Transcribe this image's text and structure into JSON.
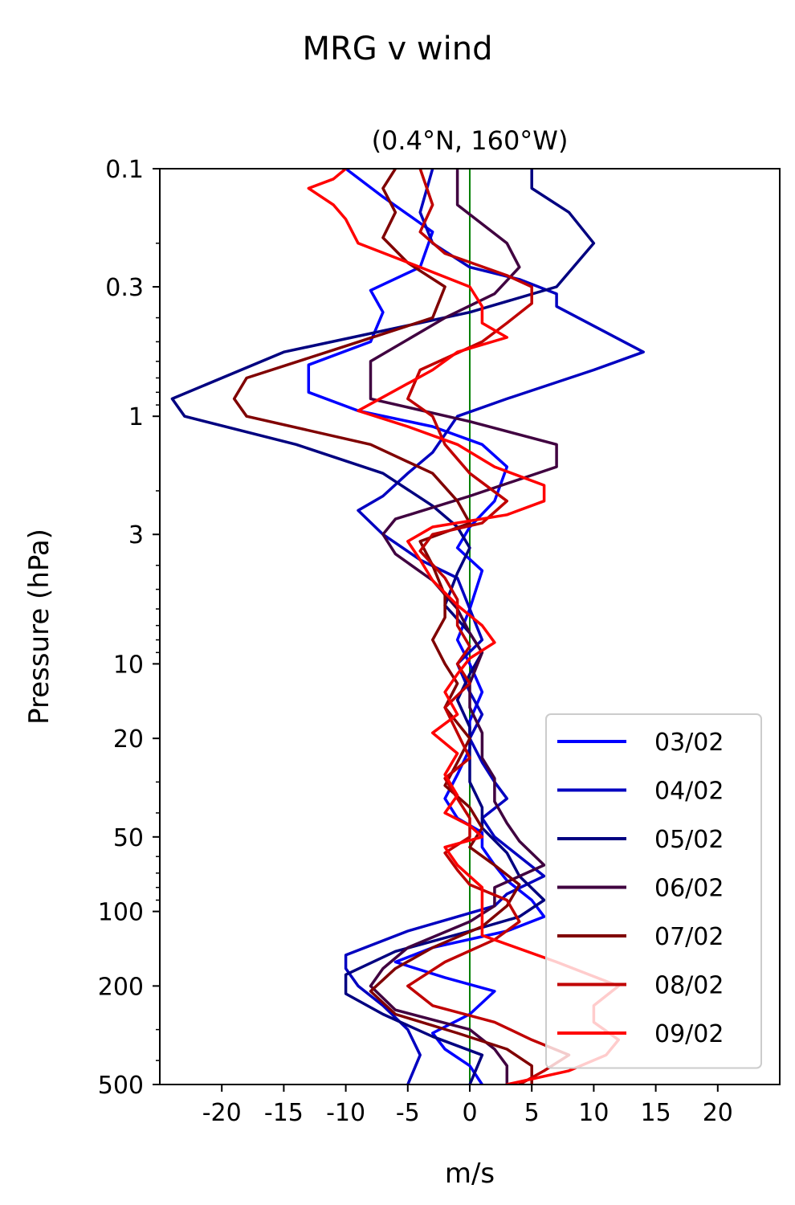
{
  "figure": {
    "title": "MRG v wind"
  },
  "chart_data": {
    "type": "line",
    "orientation": "vertical-profile",
    "title": "(0.4°N, 160°W)",
    "xlabel": "m/s",
    "ylabel": "Pressure (hPa)",
    "xlim": [
      -25,
      25
    ],
    "ylim": [
      500,
      0.1
    ],
    "yscale": "log",
    "xticks": [
      -20,
      -15,
      -10,
      -5,
      0,
      5,
      10,
      15,
      20
    ],
    "xtick_labels": [
      "-20",
      "-15",
      "-10",
      "-5",
      "0",
      "5",
      "10",
      "15",
      "20"
    ],
    "yticks": [
      0.1,
      0.3,
      1,
      3,
      10,
      20,
      50,
      100,
      200,
      500
    ],
    "ytick_labels": [
      "0.1",
      "0.3",
      "1",
      "3",
      "10",
      "20",
      "50",
      "100",
      "200",
      "500"
    ],
    "reference_line": {
      "x": 0,
      "color": "#008000"
    },
    "legend": {
      "position": "bottom-right"
    },
    "series": [
      {
        "name": "03/02",
        "color": "#0000ff",
        "points": [
          [
            -10,
            0.1
          ],
          [
            -7,
            0.13
          ],
          [
            -3,
            0.18
          ],
          [
            -4,
            0.25
          ],
          [
            -8,
            0.31
          ],
          [
            -7,
            0.38
          ],
          [
            -8,
            0.5
          ],
          [
            -13,
            0.62
          ],
          [
            -13,
            0.8
          ],
          [
            -9,
            0.95
          ],
          [
            -3,
            1.1
          ],
          [
            1,
            1.3
          ],
          [
            3,
            1.6
          ],
          [
            2,
            2.2
          ],
          [
            0,
            2.8
          ],
          [
            -1,
            3.4
          ],
          [
            1,
            4.2
          ],
          [
            0,
            6
          ],
          [
            -1,
            8
          ],
          [
            0,
            10
          ],
          [
            1,
            13
          ],
          [
            0,
            17
          ],
          [
            0,
            22
          ],
          [
            -1,
            28
          ],
          [
            -2,
            35
          ],
          [
            -1,
            42
          ],
          [
            1,
            48
          ],
          [
            1,
            55
          ],
          [
            2,
            65
          ],
          [
            3,
            75
          ],
          [
            5,
            90
          ],
          [
            6,
            105
          ],
          [
            3,
            120
          ],
          [
            -3,
            140
          ],
          [
            -6,
            160
          ],
          [
            -2,
            185
          ],
          [
            2,
            210
          ],
          [
            0,
            260
          ],
          [
            -3,
            310
          ],
          [
            -2,
            360
          ],
          [
            0,
            420
          ],
          [
            1,
            500
          ]
        ]
      },
      {
        "name": "04/02",
        "color": "#0000c0",
        "points": [
          [
            -3,
            0.1
          ],
          [
            -4,
            0.15
          ],
          [
            -3,
            0.2
          ],
          [
            0,
            0.25
          ],
          [
            4,
            0.28
          ],
          [
            7,
            0.32
          ],
          [
            7,
            0.36
          ],
          [
            14,
            0.55
          ],
          [
            10,
            0.65
          ],
          [
            3,
            0.85
          ],
          [
            -1,
            1.0
          ],
          [
            -3,
            1.4
          ],
          [
            -5,
            1.7
          ],
          [
            -7,
            2.1
          ],
          [
            -9,
            2.4
          ],
          [
            -7,
            3.0
          ],
          [
            -4,
            3.8
          ],
          [
            -1,
            4.5
          ],
          [
            0,
            6
          ],
          [
            1,
            8
          ],
          [
            -1,
            10
          ],
          [
            0,
            13
          ],
          [
            1,
            16
          ],
          [
            0,
            20
          ],
          [
            1,
            25
          ],
          [
            2,
            30
          ],
          [
            3,
            35
          ],
          [
            1,
            42
          ],
          [
            2,
            50
          ],
          [
            4,
            60
          ],
          [
            6,
            72
          ],
          [
            3,
            85
          ],
          [
            2,
            95
          ],
          [
            -5,
            120
          ],
          [
            -10,
            150
          ],
          [
            -10,
            170
          ],
          [
            -9,
            200
          ],
          [
            -7,
            240
          ],
          [
            -5,
            300
          ],
          [
            -4,
            380
          ],
          [
            -5,
            500
          ]
        ]
      },
      {
        "name": "05/02",
        "color": "#000080",
        "points": [
          [
            5,
            0.1
          ],
          [
            5,
            0.12
          ],
          [
            8,
            0.15
          ],
          [
            10,
            0.2
          ],
          [
            7,
            0.3
          ],
          [
            0,
            0.38
          ],
          [
            -15,
            0.55
          ],
          [
            -24,
            0.85
          ],
          [
            -23,
            1.0
          ],
          [
            -14,
            1.3
          ],
          [
            -7,
            1.7
          ],
          [
            -3,
            2.3
          ],
          [
            -1,
            2.8
          ],
          [
            0,
            3.4
          ],
          [
            -1,
            4.3
          ],
          [
            -2,
            5.8
          ],
          [
            0,
            7.5
          ],
          [
            1,
            9
          ],
          [
            0,
            11
          ],
          [
            -1,
            14
          ],
          [
            0,
            18
          ],
          [
            0,
            24
          ],
          [
            0,
            30
          ],
          [
            1,
            38
          ],
          [
            1,
            46
          ],
          [
            3,
            58
          ],
          [
            4,
            72
          ],
          [
            6,
            90
          ],
          [
            4,
            105
          ],
          [
            0,
            120
          ],
          [
            -6,
            145
          ],
          [
            -10,
            180
          ],
          [
            -10,
            215
          ],
          [
            -7,
            260
          ],
          [
            -3,
            320
          ],
          [
            1,
            380
          ],
          [
            0,
            500
          ]
        ]
      },
      {
        "name": "06/02",
        "color": "#400040",
        "points": [
          [
            -1,
            0.1
          ],
          [
            -1,
            0.14
          ],
          [
            3,
            0.2
          ],
          [
            4,
            0.25
          ],
          [
            2,
            0.32
          ],
          [
            -2,
            0.4
          ],
          [
            -8,
            0.6
          ],
          [
            -8,
            0.85
          ],
          [
            0,
            1.05
          ],
          [
            7,
            1.3
          ],
          [
            7,
            1.6
          ],
          [
            0,
            2.1
          ],
          [
            -6,
            2.6
          ],
          [
            -7,
            3.0
          ],
          [
            -6,
            3.6
          ],
          [
            -3,
            4.6
          ],
          [
            -1,
            6
          ],
          [
            0,
            7.5
          ],
          [
            1,
            9
          ],
          [
            0,
            12
          ],
          [
            0,
            15
          ],
          [
            1,
            19
          ],
          [
            1,
            24
          ],
          [
            2,
            29
          ],
          [
            2,
            36
          ],
          [
            3,
            44
          ],
          [
            4,
            52
          ],
          [
            6,
            65
          ],
          [
            2,
            80
          ],
          [
            2,
            95
          ],
          [
            0,
            110
          ],
          [
            -5,
            140
          ],
          [
            -7,
            170
          ],
          [
            -8,
            200
          ],
          [
            -6,
            250
          ],
          [
            0,
            300
          ],
          [
            2,
            360
          ],
          [
            3,
            420
          ],
          [
            3,
            500
          ]
        ]
      },
      {
        "name": "07/02",
        "color": "#800000",
        "points": [
          [
            -6,
            0.1
          ],
          [
            -7,
            0.12
          ],
          [
            -6,
            0.15
          ],
          [
            -7,
            0.19
          ],
          [
            -5,
            0.24
          ],
          [
            -2,
            0.3
          ],
          [
            -3,
            0.4
          ],
          [
            -10,
            0.52
          ],
          [
            -18,
            0.7
          ],
          [
            -19,
            0.85
          ],
          [
            -18,
            1.0
          ],
          [
            -8,
            1.3
          ],
          [
            -3,
            1.7
          ],
          [
            -1,
            2.2
          ],
          [
            0,
            2.7
          ],
          [
            -4,
            3.2
          ],
          [
            -3,
            4.0
          ],
          [
            -2,
            5.3
          ],
          [
            -2,
            6.5
          ],
          [
            -3,
            8
          ],
          [
            -2,
            10
          ],
          [
            -1,
            12
          ],
          [
            -2,
            15
          ],
          [
            0,
            20
          ],
          [
            -1,
            25
          ],
          [
            -2,
            31
          ],
          [
            0,
            38
          ],
          [
            1,
            46
          ],
          [
            0,
            55
          ],
          [
            2,
            65
          ],
          [
            4,
            78
          ],
          [
            3,
            95
          ],
          [
            1,
            115
          ],
          [
            -3,
            140
          ],
          [
            -6,
            170
          ],
          [
            -8,
            210
          ],
          [
            -6,
            260
          ],
          [
            -1,
            310
          ],
          [
            3,
            360
          ],
          [
            5,
            420
          ],
          [
            5,
            500
          ]
        ]
      },
      {
        "name": "08/02",
        "color": "#c00000",
        "points": [
          [
            -4,
            0.1
          ],
          [
            -3,
            0.14
          ],
          [
            -4,
            0.18
          ],
          [
            -2,
            0.22
          ],
          [
            3,
            0.27
          ],
          [
            5,
            0.3
          ],
          [
            5,
            0.35
          ],
          [
            3,
            0.42
          ],
          [
            1,
            0.5
          ],
          [
            -4,
            0.65
          ],
          [
            -5,
            0.85
          ],
          [
            -3,
            1.0
          ],
          [
            -2,
            1.3
          ],
          [
            0,
            1.7
          ],
          [
            3,
            2.2
          ],
          [
            1,
            2.7
          ],
          [
            -3,
            3.0
          ],
          [
            -4,
            3.5
          ],
          [
            -2,
            4.5
          ],
          [
            -1,
            5.5
          ],
          [
            -1,
            7
          ],
          [
            0,
            8.5
          ],
          [
            -1,
            10
          ],
          [
            0,
            12
          ],
          [
            -2,
            15
          ],
          [
            -1,
            19
          ],
          [
            0,
            24
          ],
          [
            -2,
            29
          ],
          [
            -1,
            35
          ],
          [
            0,
            42
          ],
          [
            0,
            50
          ],
          [
            -2,
            58
          ],
          [
            -1,
            68
          ],
          [
            0,
            78
          ],
          [
            3,
            90
          ],
          [
            4,
            110
          ],
          [
            2,
            130
          ],
          [
            -2,
            160
          ],
          [
            -5,
            200
          ],
          [
            -3,
            240
          ],
          [
            2,
            280
          ],
          [
            5,
            330
          ],
          [
            8,
            380
          ],
          [
            6,
            440
          ],
          [
            4,
            500
          ]
        ]
      },
      {
        "name": "09/02",
        "color": "#ff0000",
        "points": [
          [
            -10,
            0.1
          ],
          [
            -11,
            0.11
          ],
          [
            -13,
            0.12
          ],
          [
            -11,
            0.14
          ],
          [
            -10,
            0.16
          ],
          [
            -9,
            0.2
          ],
          [
            -4,
            0.25
          ],
          [
            0,
            0.3
          ],
          [
            1,
            0.36
          ],
          [
            1,
            0.42
          ],
          [
            3,
            0.48
          ],
          [
            -1,
            0.55
          ],
          [
            -3,
            0.65
          ],
          [
            -9,
            0.95
          ],
          [
            -5,
            1.1
          ],
          [
            -1,
            1.3
          ],
          [
            2,
            1.6
          ],
          [
            6,
            1.9
          ],
          [
            6,
            2.2
          ],
          [
            3,
            2.5
          ],
          [
            -3,
            2.8
          ],
          [
            -5,
            3.2
          ],
          [
            -4,
            3.8
          ],
          [
            -3,
            4.6
          ],
          [
            -1,
            5.8
          ],
          [
            1,
            7
          ],
          [
            2,
            8.2
          ],
          [
            0,
            9.5
          ],
          [
            -1,
            11
          ],
          [
            -2,
            13
          ],
          [
            -1,
            16
          ],
          [
            -3,
            19
          ],
          [
            -1,
            23
          ],
          [
            -2,
            28
          ],
          [
            -1,
            34
          ],
          [
            -2,
            40
          ],
          [
            0,
            45
          ],
          [
            1,
            50
          ],
          [
            -2,
            55
          ],
          [
            -1,
            65
          ],
          [
            1,
            80
          ],
          [
            1,
            100
          ],
          [
            1,
            125
          ],
          [
            7,
            160
          ],
          [
            12,
            200
          ],
          [
            10,
            240
          ],
          [
            10,
            280
          ],
          [
            12,
            330
          ],
          [
            11,
            380
          ],
          [
            8,
            440
          ],
          [
            3,
            500
          ]
        ]
      }
    ]
  }
}
